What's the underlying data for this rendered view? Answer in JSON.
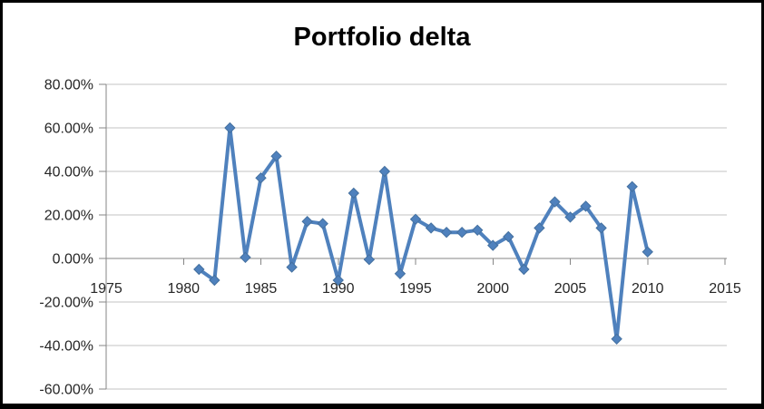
{
  "chart_data": {
    "type": "line",
    "title": "Portfolio delta",
    "x": [
      1981,
      1982,
      1983,
      1984,
      1985,
      1986,
      1987,
      1988,
      1989,
      1990,
      1991,
      1992,
      1993,
      1994,
      1995,
      1996,
      1997,
      1998,
      1999,
      2000,
      2001,
      2002,
      2003,
      2004,
      2005,
      2006,
      2007,
      2008,
      2009,
      2010
    ],
    "values": [
      -5,
      -10,
      60,
      0.5,
      37,
      47,
      -4,
      17,
      16,
      -10,
      30,
      -0.5,
      40,
      -7,
      18,
      14,
      12,
      12,
      13,
      6,
      10,
      -5,
      14,
      26,
      19,
      24,
      14,
      -37,
      33,
      3
    ],
    "units": "percent",
    "xlabel": "",
    "ylabel": "",
    "xlim": [
      1975,
      2015
    ],
    "ylim_pct": [
      -60,
      80
    ],
    "grid": true,
    "legend": false,
    "marker": "diamond",
    "x_ticks": [
      {
        "label": "1975",
        "value": 1975
      },
      {
        "label": "1980",
        "value": 1980
      },
      {
        "label": "1985",
        "value": 1985
      },
      {
        "label": "1990",
        "value": 1990
      },
      {
        "label": "1995",
        "value": 1995
      },
      {
        "label": "2000",
        "value": 2000
      },
      {
        "label": "2005",
        "value": 2005
      },
      {
        "label": "2010",
        "value": 2010
      },
      {
        "label": "2015",
        "value": 2015
      }
    ],
    "y_ticks": [
      {
        "label": "80.00%",
        "value": 80
      },
      {
        "label": "60.00%",
        "value": 60
      },
      {
        "label": "40.00%",
        "value": 40
      },
      {
        "label": "20.00%",
        "value": 20
      },
      {
        "label": "0.00%",
        "value": 0
      },
      {
        "label": "-20.00%",
        "value": -20
      },
      {
        "label": "-40.00%",
        "value": -40
      },
      {
        "label": "-60.00%",
        "value": -60
      }
    ],
    "colors": {
      "series": "#4F81BD",
      "series_edge": "#44709F",
      "gridline": "#C3C3C3",
      "axis": "#868686",
      "tick_label": "#262626",
      "title": "#000000",
      "frame": "#000000",
      "background": "#FFFFFF"
    }
  }
}
